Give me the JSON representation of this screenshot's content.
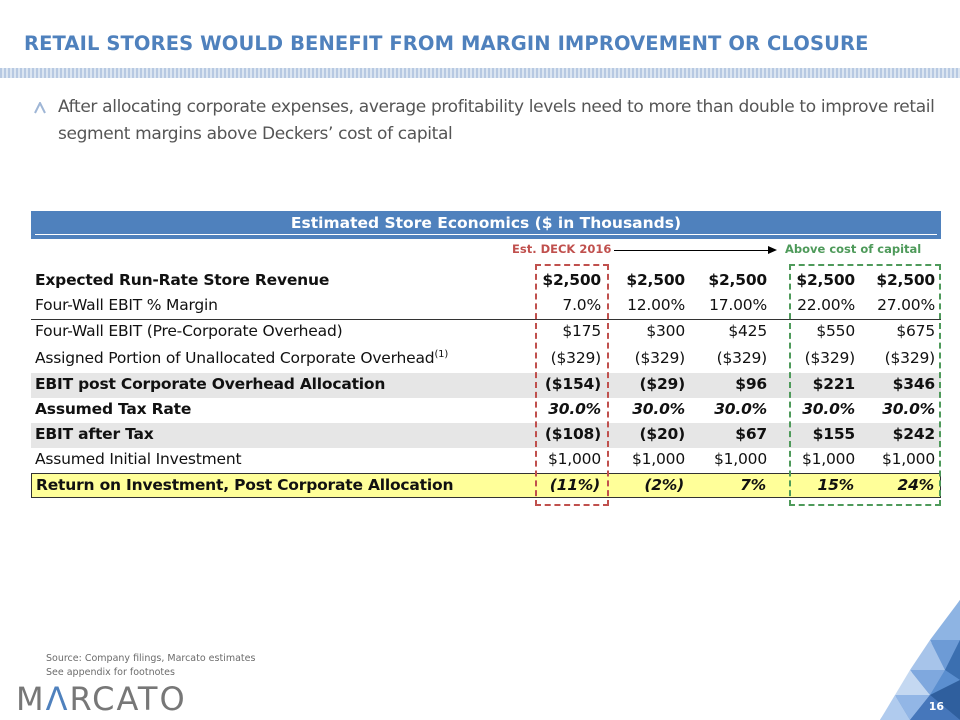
{
  "slide": {
    "title": "RETAIL STORES WOULD BENEFIT FROM MARGIN IMPROVEMENT OR CLOSURE",
    "bullet": "After allocating corporate expenses, average profitability levels need to more than double to improve retail segment margins above Deckers’ cost of capital",
    "page_number": "16"
  },
  "table": {
    "header": "Estimated Store Economics ($ in Thousands)",
    "annotation_left": "Est. DECK 2016",
    "annotation_right": "Above cost of capital",
    "colors": {
      "header_bg": "#4f81bd",
      "red_box": "#c0504d",
      "green_box": "#4e9a5a",
      "highlight": "#ffff99"
    },
    "rows": [
      {
        "label": "Expected Run-Rate Store Revenue",
        "sup": "",
        "values": [
          "$2,500",
          "$2,500",
          "$2,500",
          "$2,500",
          "$2,500"
        ]
      },
      {
        "label": "Four-Wall EBIT % Margin",
        "sup": "",
        "values": [
          "7.0%",
          "12.00%",
          "17.00%",
          "22.00%",
          "27.00%"
        ]
      },
      {
        "label": "Four-Wall EBIT (Pre-Corporate Overhead)",
        "sup": "",
        "values": [
          "$175",
          "$300",
          "$425",
          "$550",
          "$675"
        ]
      },
      {
        "label": "Assigned Portion of Unallocated Corporate Overhead",
        "sup": "(1)",
        "values": [
          "($329)",
          "($329)",
          "($329)",
          "($329)",
          "($329)"
        ]
      },
      {
        "label": "EBIT post Corporate Overhead Allocation",
        "sup": "",
        "values": [
          "($154)",
          "($29)",
          "$96",
          "$221",
          "$346"
        ]
      },
      {
        "label": "Assumed Tax Rate",
        "sup": "",
        "values": [
          "30.0%",
          "30.0%",
          "30.0%",
          "30.0%",
          "30.0%"
        ]
      },
      {
        "label": "EBIT after Tax",
        "sup": "",
        "values": [
          "($108)",
          "($20)",
          "$67",
          "$155",
          "$242"
        ]
      },
      {
        "label": "Assumed Initial Investment",
        "sup": "",
        "values": [
          "$1,000",
          "$1,000",
          "$1,000",
          "$1,000",
          "$1,000"
        ]
      },
      {
        "label": "Return on Investment, Post Corporate Allocation",
        "sup": "",
        "values": [
          "(11%)",
          "(2%)",
          "7%",
          "15%",
          "24%"
        ]
      }
    ]
  },
  "footer": {
    "source": "Source: Company filings, Marcato estimates",
    "note": "See appendix for footnotes",
    "logo_left": "M",
    "logo_accent": "Λ",
    "logo_right": "RCATO"
  }
}
